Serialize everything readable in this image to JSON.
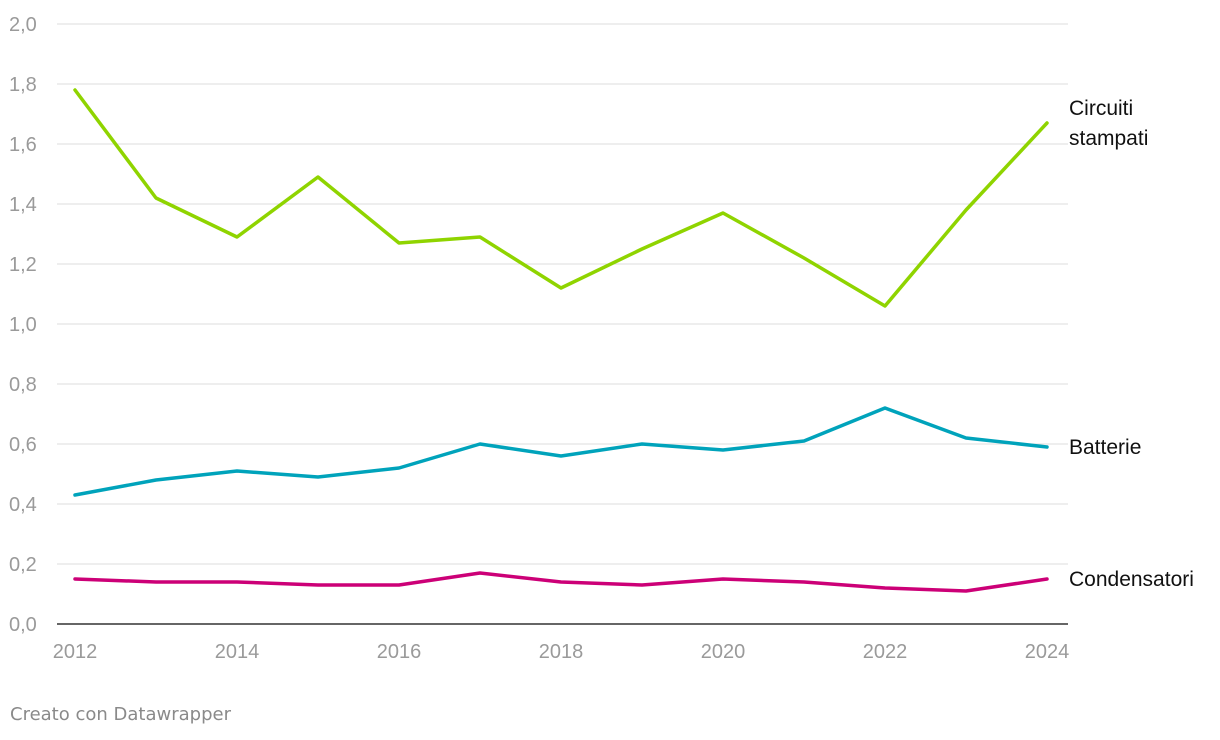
{
  "chart_data": {
    "type": "line",
    "title": "",
    "xlabel": "",
    "ylabel": "",
    "x": [
      2012,
      2013,
      2014,
      2015,
      2016,
      2017,
      2018,
      2019,
      2020,
      2021,
      2022,
      2023,
      2024
    ],
    "x_ticks": [
      "2012",
      "2014",
      "2016",
      "2018",
      "2020",
      "2022",
      "2024"
    ],
    "y_ticks": [
      "0,0",
      "0,2",
      "0,4",
      "0,6",
      "0,8",
      "1,0",
      "1,2",
      "1,4",
      "1,6",
      "1,8",
      "2,0"
    ],
    "ylim": [
      0,
      2.0
    ],
    "grid": true,
    "legend": "direct labels at line ends (right)",
    "series": [
      {
        "name": "Circuiti stampati",
        "label_lines": [
          "Circuiti",
          "stampati"
        ],
        "color": "#8fd400",
        "values": [
          1.78,
          1.42,
          1.29,
          1.49,
          1.27,
          1.29,
          1.12,
          1.25,
          1.37,
          1.22,
          1.06,
          1.38,
          1.67
        ]
      },
      {
        "name": "Batterie",
        "label_lines": [
          "Batterie"
        ],
        "color": "#00a3bb",
        "values": [
          0.43,
          0.48,
          0.51,
          0.49,
          0.52,
          0.6,
          0.56,
          0.6,
          0.58,
          0.61,
          0.72,
          0.62,
          0.59
        ]
      },
      {
        "name": "Condensatori",
        "label_lines": [
          "Condensatori"
        ],
        "color": "#cc0077",
        "values": [
          0.15,
          0.14,
          0.14,
          0.13,
          0.13,
          0.17,
          0.14,
          0.13,
          0.15,
          0.14,
          0.12,
          0.11,
          0.15
        ]
      }
    ]
  },
  "footer": {
    "credit": "Creato con Datawrapper"
  }
}
